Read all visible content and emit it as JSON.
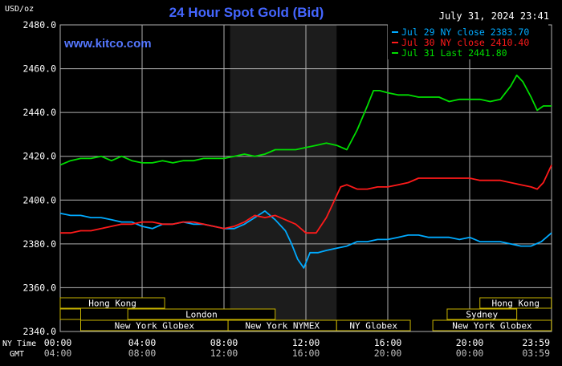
{
  "header": {
    "title": "24 Hour Spot Gold (Bid)",
    "unit_label": "USD/oz",
    "timestamp": "July 31, 2024 23:41",
    "watermark": "www.kitco.com"
  },
  "colors": {
    "background": "#000000",
    "grid": "#b0b0b0",
    "title": "#4466ff",
    "watermark": "#5577ff",
    "axis_text": "#ffffff",
    "session_box": "#c8b400",
    "session_text": "#ffffff",
    "highlight": "#1c1c1c",
    "jul29": "#00aaff",
    "jul30": "#ff1a1a",
    "jul31": "#00dd00"
  },
  "legend": [
    {
      "label": "Jul 29 NY close 2383.70",
      "series": 0
    },
    {
      "label": "Jul 30 NY close 2410.40",
      "series": 1
    },
    {
      "label": "Jul 31 Last 2441.80",
      "series": 2
    }
  ],
  "axis": {
    "row_nytime_label": "NY Time",
    "row_gmt_label": "GMT",
    "ny_ticks": [
      "00:00",
      "04:00",
      "08:00",
      "12:00",
      "16:00",
      "20:00",
      "23:59"
    ],
    "gmt_ticks": [
      "04:00",
      "08:00",
      "12:00",
      "16:00",
      "20:00",
      "00:00",
      "03:59"
    ]
  },
  "sessions": [
    {
      "name": "Hong Kong",
      "start_hr": 0,
      "end_hr": 5.1,
      "row": 0
    },
    {
      "name": "",
      "start_hr": 0,
      "end_hr": 1,
      "row": 1
    },
    {
      "name": "London",
      "start_hr": 3.3,
      "end_hr": 10.5,
      "row": 1
    },
    {
      "name": "New York Globex",
      "start_hr": 1,
      "end_hr": 8.2,
      "row": 2
    },
    {
      "name": "New York NYMEX",
      "start_hr": 8.2,
      "end_hr": 13.5,
      "row": 2
    },
    {
      "name": "NY Globex",
      "start_hr": 13.5,
      "end_hr": 17.1,
      "row": 2
    },
    {
      "name": "Hong Kong",
      "start_hr": 20.5,
      "end_hr": 23.99,
      "row": 0
    },
    {
      "name": "Sydney",
      "start_hr": 18.9,
      "end_hr": 22.3,
      "row": 1
    },
    {
      "name": "New York Globex",
      "start_hr": 18.2,
      "end_hr": 23.99,
      "row": 2
    }
  ],
  "chart_data": {
    "type": "line",
    "title": "24 Hour Spot Gold (Bid)",
    "ylabel": "USD/oz",
    "xlabel": "NY Time",
    "xlim": [
      0,
      24
    ],
    "ylim": [
      2340,
      2480
    ],
    "yticks": [
      2340,
      2360,
      2380,
      2400,
      2420,
      2440,
      2460,
      2480
    ],
    "grid": true,
    "legend_position": "top-right",
    "highlight_range": [
      8.3,
      13.5
    ],
    "series": [
      {
        "name": "Jul 29 NY close 2383.70",
        "color": "#00aaff",
        "x": [
          0,
          0.5,
          1,
          1.5,
          2,
          2.5,
          3,
          3.5,
          4,
          4.5,
          5,
          5.5,
          6,
          6.5,
          7,
          7.5,
          8,
          8.5,
          9,
          9.5,
          10,
          10.5,
          11,
          11.3,
          11.6,
          11.9,
          12.2,
          12.6,
          13,
          13.5,
          14,
          14.5,
          15,
          15.5,
          16,
          16.5,
          17,
          17.5,
          18,
          18.5,
          19,
          19.5,
          20,
          20.5,
          21,
          21.5,
          22,
          22.5,
          23,
          23.5,
          24
        ],
        "y": [
          2394,
          2393,
          2393,
          2392,
          2392,
          2391,
          2390,
          2390,
          2388,
          2387,
          2389,
          2389,
          2390,
          2389,
          2389,
          2388,
          2387,
          2387,
          2389,
          2392,
          2395,
          2391,
          2386,
          2380,
          2373,
          2369,
          2376,
          2376,
          2377,
          2378,
          2379,
          2381,
          2381,
          2382,
          2382,
          2383,
          2384,
          2384,
          2383,
          2383,
          2383,
          2382,
          2383,
          2381,
          2381,
          2381,
          2380,
          2379,
          2379,
          2381,
          2385
        ]
      },
      {
        "name": "Jul 30 NY close 2410.40",
        "color": "#ff1a1a",
        "x": [
          0,
          0.5,
          1,
          1.5,
          2,
          2.5,
          3,
          3.5,
          4,
          4.5,
          5,
          5.5,
          6,
          6.5,
          7,
          7.5,
          8,
          8.5,
          9,
          9.5,
          10,
          10.5,
          11,
          11.5,
          12,
          12.5,
          13,
          13.3,
          13.7,
          14,
          14.5,
          15,
          15.5,
          16,
          16.5,
          17,
          17.5,
          18,
          18.5,
          19,
          19.5,
          20,
          20.5,
          21,
          21.5,
          22,
          22.5,
          23,
          23.3,
          23.6,
          24
        ],
        "y": [
          2385,
          2385,
          2386,
          2386,
          2387,
          2388,
          2389,
          2389,
          2390,
          2390,
          2389,
          2389,
          2390,
          2390,
          2389,
          2388,
          2387,
          2388,
          2390,
          2393,
          2392,
          2393,
          2391,
          2389,
          2385,
          2385,
          2392,
          2398,
          2406,
          2407,
          2405,
          2405,
          2406,
          2406,
          2407,
          2408,
          2410,
          2410,
          2410,
          2410,
          2410,
          2410,
          2409,
          2409,
          2409,
          2408,
          2407,
          2406,
          2405,
          2408,
          2416
        ]
      },
      {
        "name": "Jul 31 Last 2441.80",
        "color": "#00dd00",
        "x": [
          0,
          0.5,
          1,
          1.5,
          2,
          2.5,
          3,
          3.5,
          4,
          4.5,
          5,
          5.5,
          6,
          6.5,
          7,
          7.5,
          8,
          8.5,
          9,
          9.5,
          10,
          10.5,
          11,
          11.5,
          12,
          12.5,
          13,
          13.5,
          14,
          14.5,
          15,
          15.3,
          15.6,
          16,
          16.5,
          17,
          17.5,
          18,
          18.5,
          19,
          19.5,
          20,
          20.5,
          21,
          21.5,
          22,
          22.3,
          22.6,
          23,
          23.3,
          23.6,
          24
        ],
        "y": [
          2416,
          2418,
          2419,
          2419,
          2420,
          2418,
          2420,
          2418,
          2417,
          2417,
          2418,
          2417,
          2418,
          2418,
          2419,
          2419,
          2419,
          2420,
          2421,
          2420,
          2421,
          2423,
          2423,
          2423,
          2424,
          2425,
          2426,
          2425,
          2423,
          2432,
          2443,
          2450,
          2450,
          2449,
          2448,
          2448,
          2447,
          2447,
          2447,
          2445,
          2446,
          2446,
          2446,
          2445,
          2446,
          2452,
          2457,
          2454,
          2447,
          2441,
          2443,
          2443
        ]
      }
    ]
  }
}
